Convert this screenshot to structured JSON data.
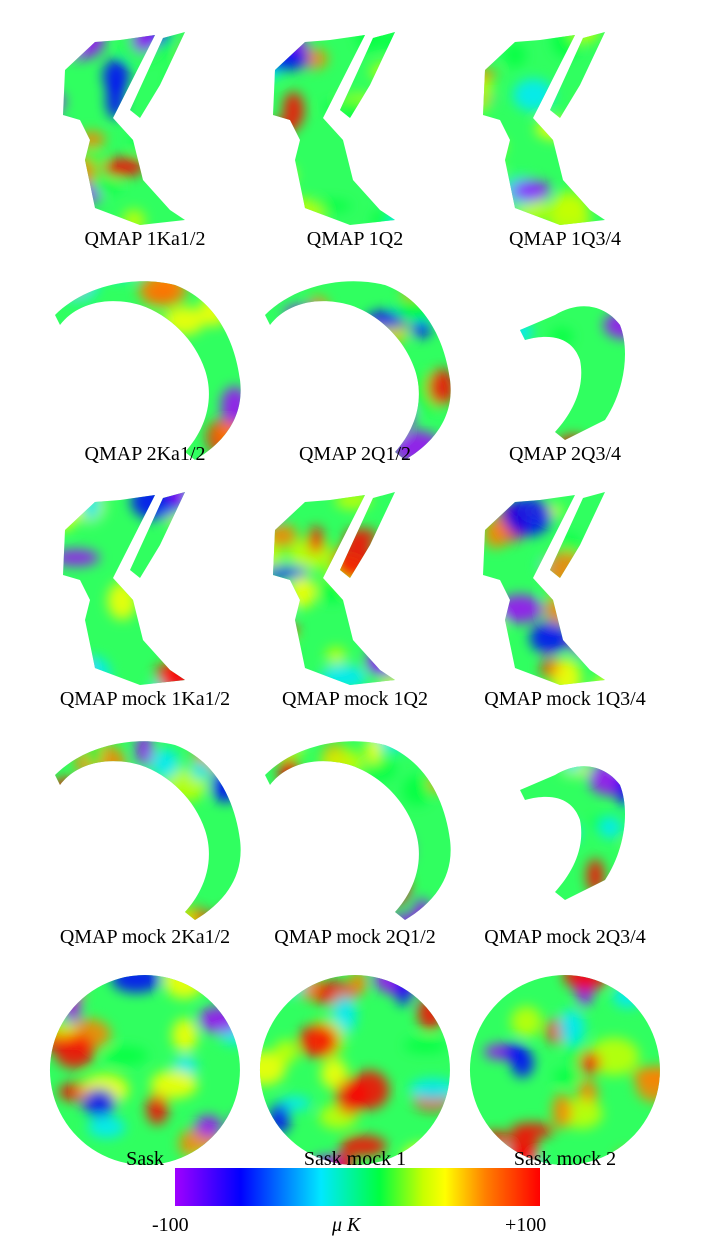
{
  "figure": {
    "panels": [
      {
        "id": "1ka12",
        "label": "QMAP 1Ka1/2",
        "shape": "v"
      },
      {
        "id": "1q2",
        "label": "QMAP 1Q2",
        "shape": "v"
      },
      {
        "id": "1q34",
        "label": "QMAP 1Q3/4",
        "shape": "v"
      },
      {
        "id": "2ka12",
        "label": "QMAP 2Ka1/2",
        "shape": "arc"
      },
      {
        "id": "2q12",
        "label": "QMAP 2Q1/2",
        "shape": "arc"
      },
      {
        "id": "2q34",
        "label": "QMAP 2Q3/4",
        "shape": "arc-small"
      },
      {
        "id": "m1ka12",
        "label": "QMAP mock 1Ka1/2",
        "shape": "v"
      },
      {
        "id": "m1q2",
        "label": "QMAP mock 1Q2",
        "shape": "v"
      },
      {
        "id": "m1q34",
        "label": "QMAP mock 1Q3/4",
        "shape": "v"
      },
      {
        "id": "m2ka12",
        "label": "QMAP mock 2Ka1/2",
        "shape": "arc"
      },
      {
        "id": "m2q12",
        "label": "QMAP mock 2Q1/2",
        "shape": "arc"
      },
      {
        "id": "m2q34",
        "label": "QMAP mock 2Q3/4",
        "shape": "arc-small"
      },
      {
        "id": "sask",
        "label": "Sask",
        "shape": "disc"
      },
      {
        "id": "sm1",
        "label": "Sask mock 1",
        "shape": "disc"
      },
      {
        "id": "sm2",
        "label": "Sask mock 2",
        "shape": "disc"
      }
    ],
    "colorbar": {
      "min_label": "-100",
      "max_label": "+100",
      "unit_label": "μ K",
      "colors": [
        "#a000ff",
        "#0000ff",
        "#00e8ff",
        "#00ff40",
        "#c8ff00",
        "#ffff00",
        "#ff8000",
        "#ff0000"
      ]
    }
  }
}
